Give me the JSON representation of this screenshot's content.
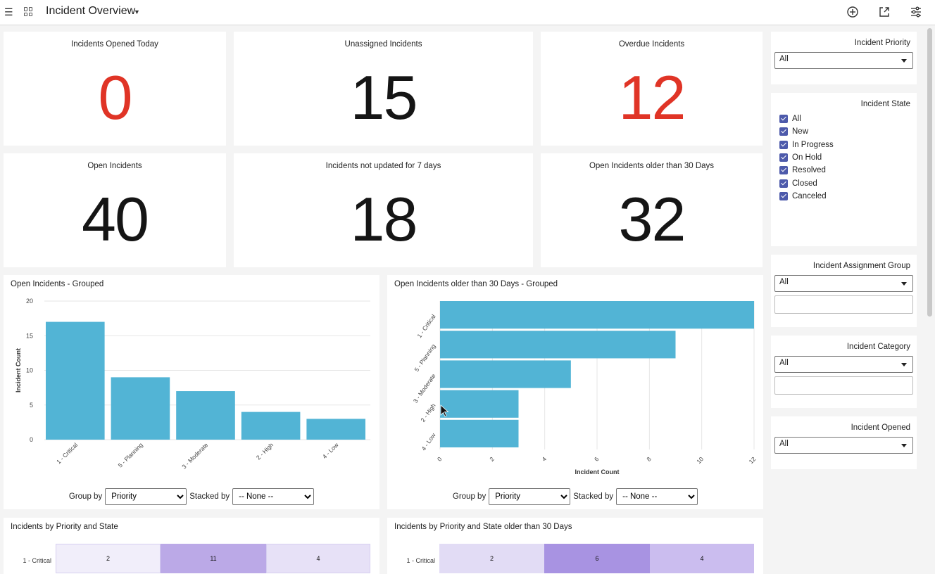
{
  "header": {
    "title": "Incident Overview"
  },
  "kpis": [
    {
      "title": "Incidents Opened Today",
      "value": "0"
    },
    {
      "title": "Unassigned Incidents",
      "value": "15"
    },
    {
      "title": "Overdue Incidents",
      "value": "12"
    },
    {
      "title": "Open Incidents",
      "value": "40"
    },
    {
      "title": "Incidents not updated for 7 days",
      "value": "18"
    },
    {
      "title": "Open Incidents older than 30 Days",
      "value": "32"
    }
  ],
  "colors": {
    "bar": "#52b4d5",
    "alert": "#e03426",
    "checkbox": "#4d5aab"
  },
  "filters": {
    "priority": {
      "title": "Incident Priority",
      "value": "All"
    },
    "state": {
      "title": "Incident State",
      "options": [
        "All",
        "New",
        "In Progress",
        "On Hold",
        "Resolved",
        "Closed",
        "Canceled"
      ]
    },
    "assignment_group": {
      "title": "Incident Assignment Group",
      "value": "All"
    },
    "category": {
      "title": "Incident Category",
      "value": "All"
    },
    "opened": {
      "title": "Incident Opened",
      "value": "All"
    }
  },
  "controls": {
    "group_by_label": "Group by",
    "group_by_value": "Priority",
    "stacked_by_label": "Stacked by",
    "stacked_by_value": "-- None --"
  },
  "chart_data": [
    {
      "type": "bar",
      "title": "Open Incidents - Grouped",
      "categories": [
        "1 - Critical",
        "5 - Planning",
        "3 - Moderate",
        "2 - High",
        "4 - Low"
      ],
      "values": [
        17,
        9,
        7,
        4,
        3
      ],
      "ylabel": "Incident Count",
      "yticks": [
        "0",
        "5",
        "10",
        "15",
        "20"
      ],
      "ylim": [
        0,
        20
      ],
      "grid": true
    },
    {
      "type": "bar",
      "orientation": "horizontal",
      "title": "Open Incidents older than 30 Days - Grouped",
      "categories": [
        "1 - Critical",
        "5 - Planning",
        "3 - Moderate",
        "2 - High",
        "4 - Low"
      ],
      "values": [
        12,
        9,
        5,
        3,
        3
      ],
      "xlabel": "Incident Count",
      "xticks": [
        "0",
        "2",
        "4",
        "6",
        "8",
        "10",
        "12"
      ],
      "xlim": [
        0,
        12
      ],
      "grid": true
    },
    {
      "type": "heatmap",
      "title": "Incidents by Priority and State",
      "rows": [
        "1 - Critical"
      ],
      "values": [
        [
          "2",
          "11",
          "4"
        ]
      ],
      "cell_colors": [
        "#f1eefa",
        "#bba9e7",
        "#e7e1f7"
      ]
    },
    {
      "type": "heatmap",
      "title": "Incidents by Priority and State older than 30 Days",
      "rows": [
        "1 - Critical"
      ],
      "values": [
        [
          "2",
          "6",
          "4"
        ]
      ],
      "cell_colors": [
        "#e2dcf5",
        "#a893e2",
        "#cbbdef"
      ]
    }
  ]
}
